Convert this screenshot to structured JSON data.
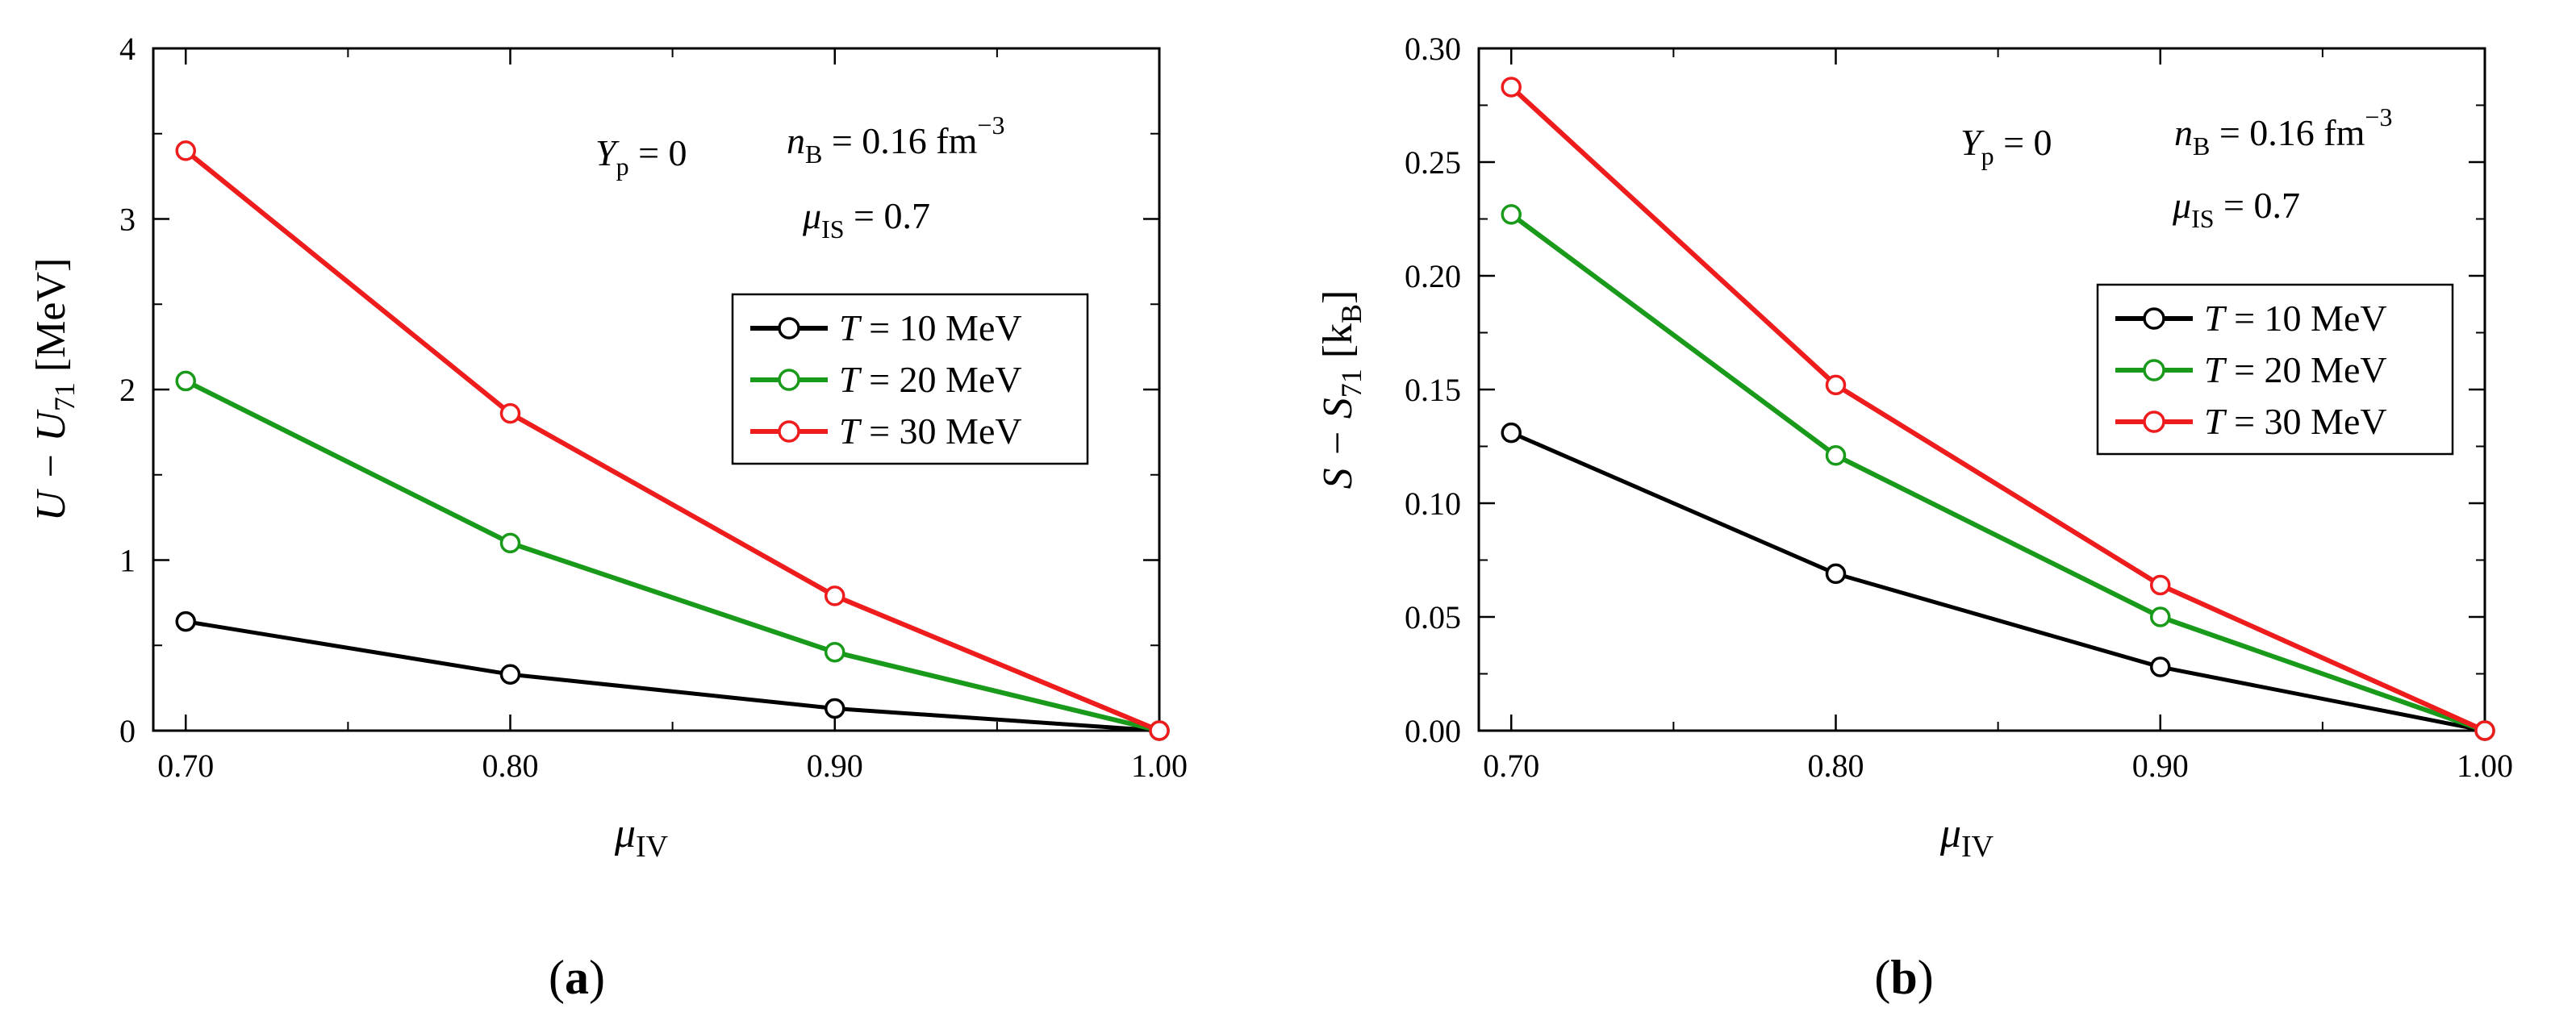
{
  "chart_data": [
    {
      "type": "line",
      "panel_label": "a",
      "x": [
        0.7,
        0.8,
        0.9,
        1.0
      ],
      "xlim": [
        0.69,
        1.0
      ],
      "ylim": [
        0,
        4
      ],
      "x_ticks": [
        0.7,
        0.8,
        0.9,
        1.0
      ],
      "x_tick_labels": [
        "0.70",
        "0.80",
        "0.90",
        "1.00"
      ],
      "y_ticks": [
        0,
        1,
        2,
        3,
        4
      ],
      "y_tick_labels": [
        "0",
        "1",
        "2",
        "3",
        "4"
      ],
      "xlabel": {
        "main": "μ",
        "sub": "IV"
      },
      "ylabel": {
        "a": "U − U",
        "sub": "71",
        "b": " [MeV]"
      },
      "annotations": {
        "yp": {
          "main": "Y",
          "sub": "p",
          "rest": " = 0"
        },
        "nb": {
          "main": "n",
          "sub": "B",
          "rest": " = 0.16 fm",
          "sup": "−3"
        },
        "mu": {
          "main": "μ",
          "sub": "IS",
          "rest": " = 0.7"
        }
      },
      "legend_position": "center-right",
      "series": [
        {
          "name": "T = 10 MeV",
          "t_label": "T",
          "rest": " = 10 MeV",
          "color": "#000000",
          "values": [
            0.64,
            0.33,
            0.13,
            0.0
          ]
        },
        {
          "name": "T = 20 MeV",
          "t_label": "T",
          "rest": " = 20 MeV",
          "color": "#1a9a1a",
          "values": [
            2.05,
            1.1,
            0.46,
            0.0
          ]
        },
        {
          "name": "T = 30 MeV",
          "t_label": "T",
          "rest": " = 30 MeV",
          "color": "#ee1c1c",
          "values": [
            3.4,
            1.86,
            0.79,
            0.0
          ]
        }
      ]
    },
    {
      "type": "line",
      "panel_label": "b",
      "x": [
        0.7,
        0.8,
        0.9,
        1.0
      ],
      "xlim": [
        0.69,
        1.0
      ],
      "ylim": [
        0,
        0.3
      ],
      "x_ticks": [
        0.7,
        0.8,
        0.9,
        1.0
      ],
      "x_tick_labels": [
        "0.70",
        "0.80",
        "0.90",
        "1.00"
      ],
      "y_ticks": [
        0,
        0.05,
        0.1,
        0.15,
        0.2,
        0.25,
        0.3
      ],
      "y_tick_labels": [
        "0.00",
        "0.05",
        "0.10",
        "0.15",
        "0.20",
        "0.25",
        "0.30"
      ],
      "xlabel": {
        "main": "μ",
        "sub": "IV"
      },
      "ylabel": {
        "a": "S − S",
        "sub": "71",
        "b": " [k",
        "sub2": "B",
        "c": "]"
      },
      "annotations": {
        "yp": {
          "main": "Y",
          "sub": "p",
          "rest": " = 0"
        },
        "nb": {
          "main": "n",
          "sub": "B",
          "rest": " = 0.16 fm",
          "sup": "−3"
        },
        "mu": {
          "main": "μ",
          "sub": "IS",
          "rest": " = 0.7"
        }
      },
      "legend_position": "center-right",
      "series": [
        {
          "name": "T = 10 MeV",
          "t_label": "T",
          "rest": " = 10 MeV",
          "color": "#000000",
          "values": [
            0.131,
            0.069,
            0.028,
            0.0
          ]
        },
        {
          "name": "T = 20 MeV",
          "t_label": "T",
          "rest": " = 20 MeV",
          "color": "#1a9a1a",
          "values": [
            0.227,
            0.121,
            0.05,
            0.0
          ]
        },
        {
          "name": "T = 30 MeV",
          "t_label": "T",
          "rest": " = 30 MeV",
          "color": "#ee1c1c",
          "values": [
            0.283,
            0.152,
            0.064,
            0.0
          ]
        }
      ]
    }
  ],
  "captions": {
    "open": "(",
    "a": "a",
    "b": "b",
    "close": ")"
  }
}
